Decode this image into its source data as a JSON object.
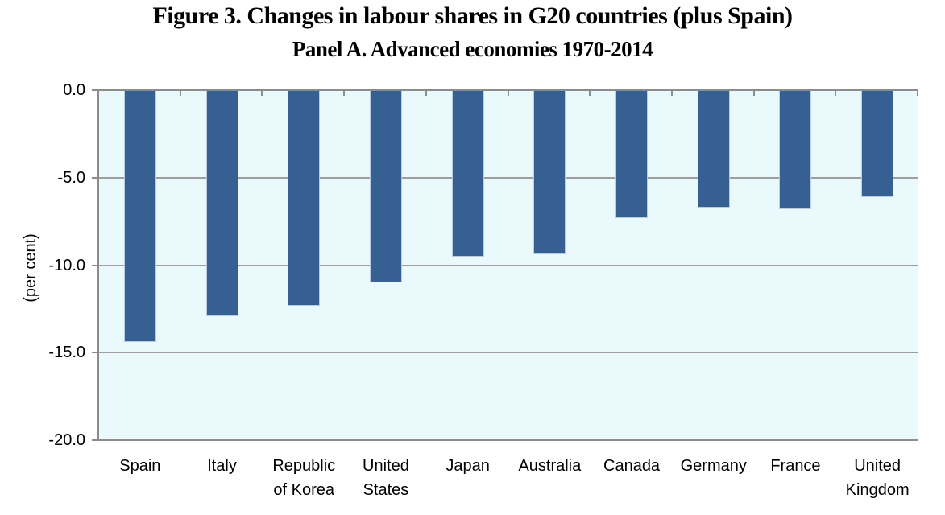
{
  "chart_data": {
    "type": "bar",
    "title": "Figure 3. Changes in labour shares in G20 countries (plus Spain)",
    "subtitle": "Panel A. Advanced economies 1970-2014",
    "ylabel": "(per cent)",
    "xlabel": "",
    "ylim": [
      -20,
      0
    ],
    "ytick_values": [
      0,
      -5,
      -10,
      -15,
      -20
    ],
    "ytick_labels": [
      "0.0",
      "-5.0",
      "-10.0",
      "-15.0",
      "-20.0"
    ],
    "categories": [
      "Spain",
      "Italy",
      "Republic of Korea",
      "United States",
      "Japan",
      "Australia",
      "Canada",
      "Germany",
      "France",
      "United Kingdom"
    ],
    "category_label_lines": [
      [
        "Spain"
      ],
      [
        "Italy"
      ],
      [
        "Republic",
        "of Korea"
      ],
      [
        "United",
        "States"
      ],
      [
        "Japan"
      ],
      [
        "Australia"
      ],
      [
        "Canada"
      ],
      [
        "Germany"
      ],
      [
        "France"
      ],
      [
        "United",
        "Kingdom"
      ]
    ],
    "values": [
      -14.4,
      -12.9,
      -12.3,
      -11.0,
      -9.5,
      -9.4,
      -7.3,
      -6.7,
      -6.8,
      -6.1
    ],
    "grid": true,
    "legend": false,
    "colors": {
      "bar_fill": "#366092",
      "bar_border": "#B8CCE4",
      "plot_bg": "#EAF9FC",
      "frame_line": "#8C8C8C",
      "gridline": "#9E9E9E",
      "text": "#000000",
      "page_bg": "#FFFFFF"
    }
  }
}
